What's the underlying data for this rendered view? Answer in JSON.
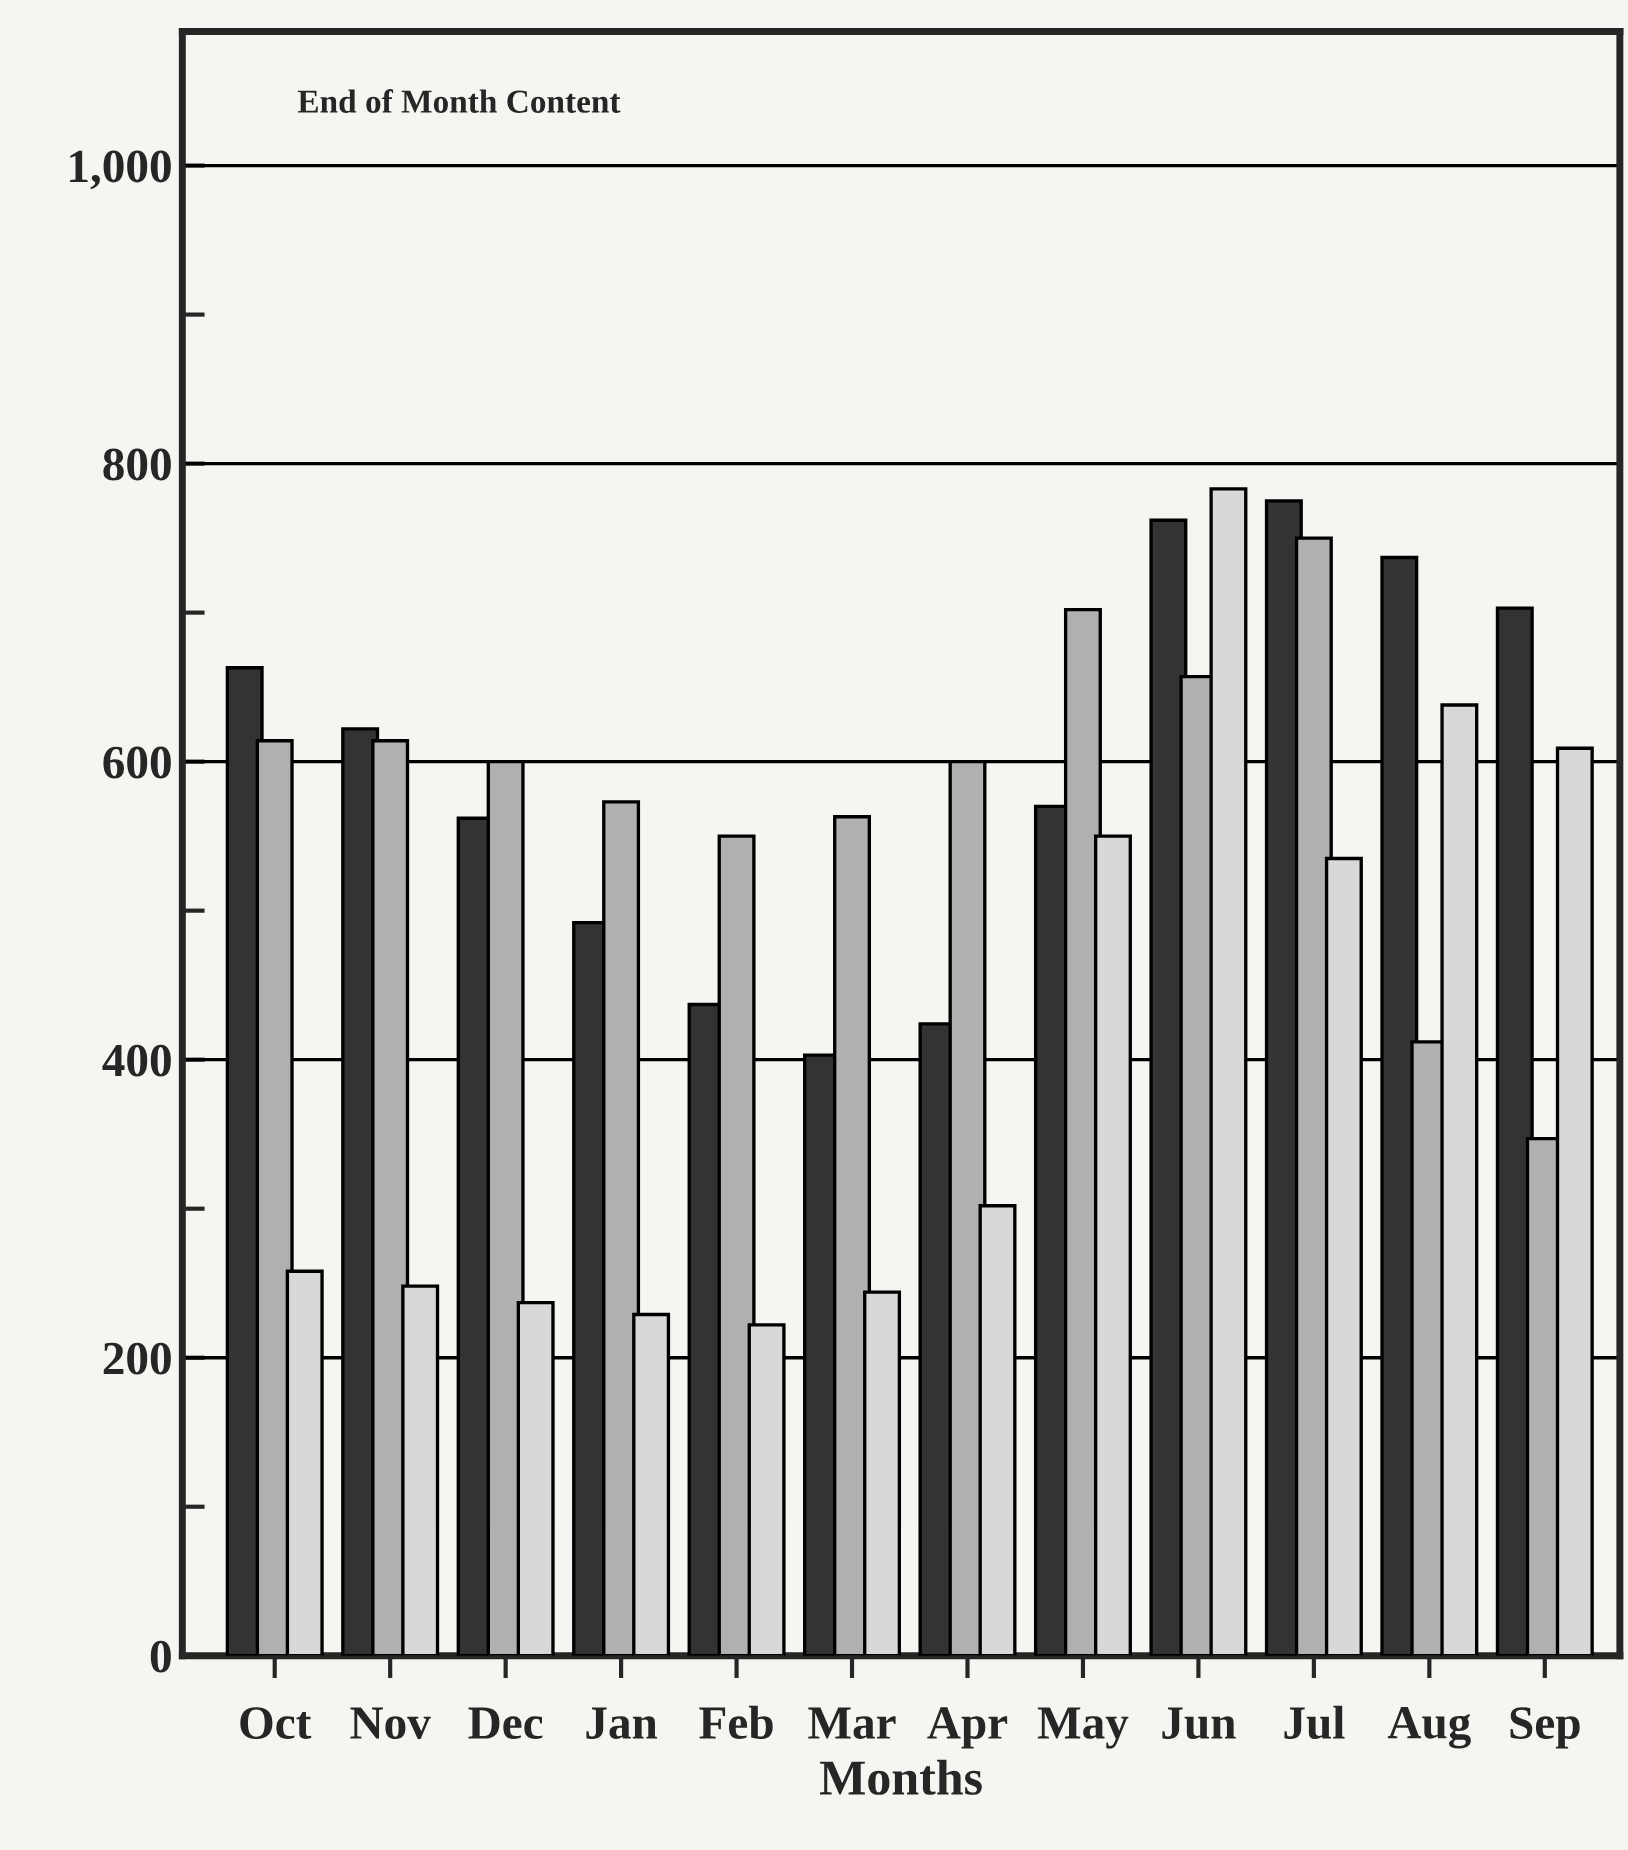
{
  "chart_data": {
    "type": "bar",
    "title": "End of Month Content",
    "xlabel": "Months",
    "categories": [
      "Oct",
      "Nov",
      "Dec",
      "Jan",
      "Feb",
      "Mar",
      "Apr",
      "May",
      "Jun",
      "Jul",
      "Aug",
      "Sep"
    ],
    "series": [
      {
        "color": "#333333",
        "values": [
          663,
          622,
          562,
          492,
          437,
          403,
          424,
          570,
          762,
          775,
          737,
          703
        ]
      },
      {
        "color": "#b0b0b0",
        "values": [
          614,
          614,
          600,
          573,
          550,
          563,
          600,
          702,
          657,
          750,
          412,
          347
        ]
      },
      {
        "color": "#d8d8d8",
        "values": [
          258,
          248,
          237,
          229,
          222,
          244,
          302,
          550,
          783,
          535,
          638,
          609
        ]
      }
    ],
    "ylim": [
      0,
      1090
    ],
    "yticks": [
      0,
      {
        "value": 100,
        "label": null
      },
      200,
      {
        "value": 300,
        "label": null
      },
      400,
      {
        "value": 500,
        "label": null
      },
      600,
      {
        "value": 700,
        "label": null
      },
      800,
      {
        "value": 900,
        "label": null
      },
      {
        "value": 1000,
        "label": "1,000"
      }
    ],
    "grid": "y",
    "legend": false
  }
}
